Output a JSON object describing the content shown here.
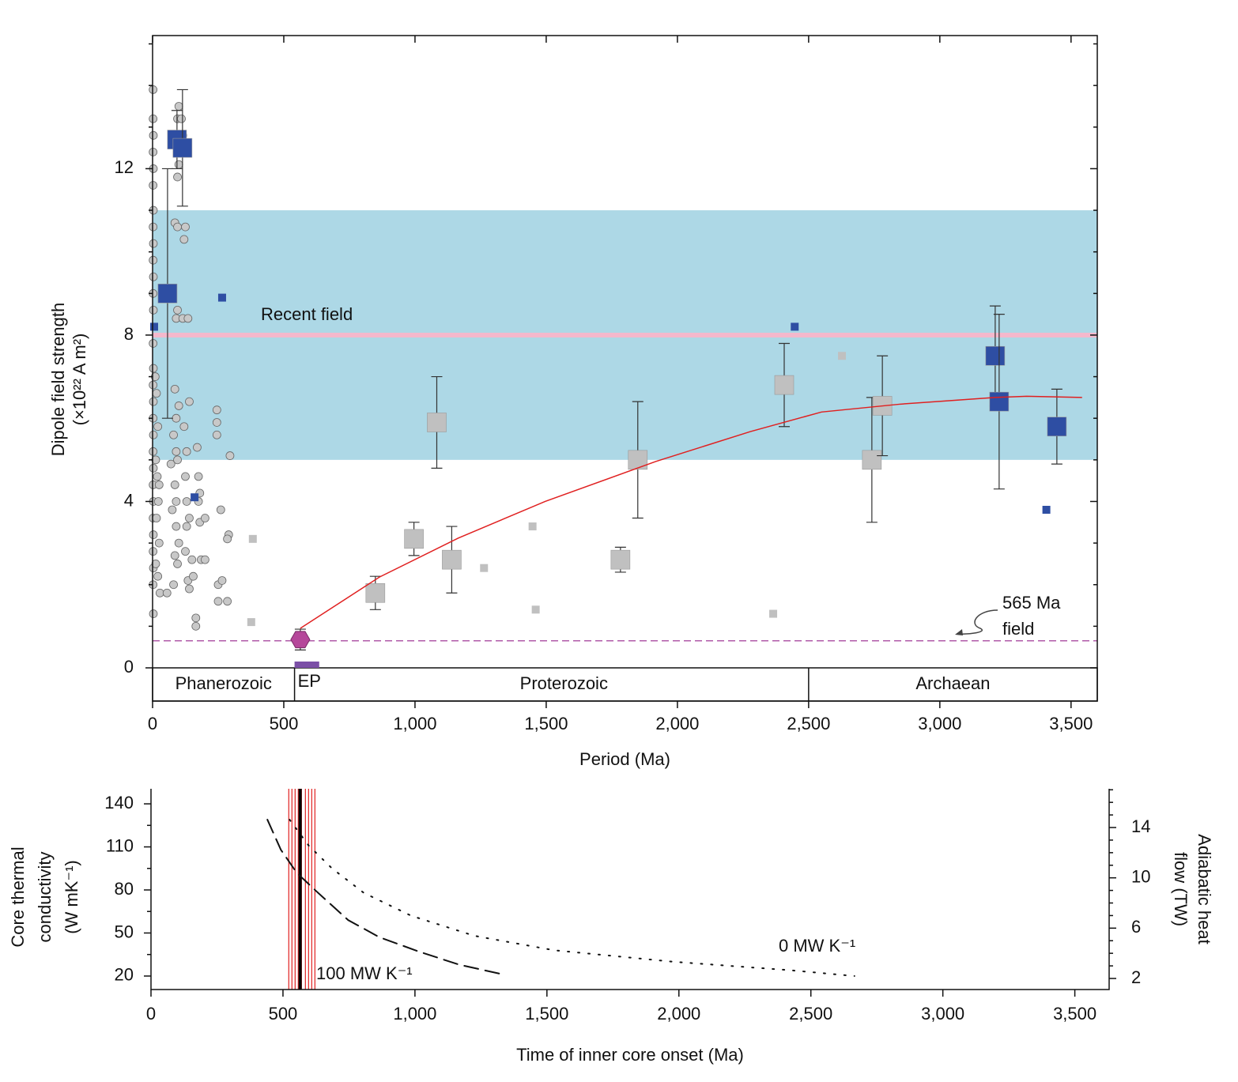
{
  "chart_data": [
    {
      "type": "scatter",
      "xlabel": "Period (Ma)",
      "ylabel": [
        "Dipole field strength",
        "(×10²² A m²)"
      ],
      "xlim": [
        0,
        3600
      ],
      "ylim": [
        0,
        15.2
      ],
      "xticks": [
        0,
        500,
        {
          "value": 1000,
          "label": "1,000"
        },
        {
          "value": 1500,
          "label": "1,500"
        },
        {
          "value": 2000,
          "label": "2,000"
        },
        {
          "value": 2500,
          "label": "2,500"
        },
        {
          "value": 3000,
          "label": "3,000"
        },
        {
          "value": 3500,
          "label": "3,500"
        }
      ],
      "yticks": [
        0,
        4,
        8,
        12
      ],
      "yminorticks": [
        1,
        2,
        3,
        5,
        6,
        7,
        9,
        10,
        11,
        13,
        14,
        15
      ],
      "reference_band": [
        5,
        11
      ],
      "band_color": "#add8e6",
      "recent_field": {
        "label": "Recent field",
        "value": 8,
        "color": "#f4b8cc"
      },
      "ediacaran_field": {
        "label": [
          "565 Ma",
          "field"
        ],
        "value": 0.65,
        "color": "#b05aa8"
      },
      "eras": [
        {
          "name": "Phanerozoic",
          "start": 0,
          "end": 541,
          "divider": true
        },
        {
          "name": "EP",
          "start": 541,
          "end": 635,
          "color": "#7b4fa6"
        },
        {
          "name": "Proterozoic",
          "start": 635,
          "end": 2500,
          "divider": true
        },
        {
          "name": "Archaean",
          "start": 2500,
          "end": 3600
        }
      ],
      "series": [
        {
          "marker": "circle",
          "color": "#c8c8c8",
          "x": [
            2,
            2,
            3,
            2,
            3,
            2,
            3,
            2,
            3,
            2,
            3,
            2,
            3,
            2,
            3,
            2,
            3,
            2,
            3,
            2,
            3,
            2,
            3,
            2,
            3,
            2,
            3,
            2,
            3,
            15,
            20,
            12,
            18,
            22,
            15,
            25,
            12,
            20,
            28,
            10,
            25,
            55,
            80,
            85,
            90,
            75,
            85,
            70,
            90,
            80,
            90,
            85,
            95,
            90,
            85,
            95,
            100,
            95,
            100,
            95,
            100,
            95,
            90,
            100,
            95,
            110,
            115,
            125,
            120,
            115,
            135,
            140,
            130,
            125,
            130,
            140,
            130,
            125,
            135,
            140,
            120,
            150,
            155,
            165,
            165,
            175,
            180,
            175,
            180,
            185,
            170,
            200,
            200,
            245,
            245,
            245,
            250,
            250,
            260,
            265,
            290,
            285,
            295,
            285
          ],
          "y": [
            13.9,
            13.2,
            12.8,
            12.4,
            12.0,
            11.6,
            11.0,
            10.6,
            10.2,
            9.8,
            9.4,
            9.0,
            8.6,
            7.8,
            7.2,
            6.8,
            6.4,
            6.0,
            5.6,
            5.2,
            4.8,
            4.4,
            4.0,
            3.6,
            3.2,
            2.8,
            2.4,
            2.0,
            1.3,
            6.6,
            5.8,
            5.0,
            4.6,
            4.0,
            3.6,
            3.0,
            2.5,
            2.2,
            1.8,
            7.0,
            4.4,
            1.8,
            2.0,
            2.7,
            3.4,
            3.8,
            4.4,
            4.9,
            5.2,
            5.6,
            6.0,
            6.7,
            8.6,
            8.4,
            10.7,
            10.6,
            13.5,
            13.2,
            12.1,
            11.8,
            6.3,
            5.0,
            4.0,
            3.0,
            2.5,
            13.2,
            12.8,
            10.6,
            10.3,
            8.4,
            8.4,
            6.4,
            5.2,
            4.6,
            4.0,
            3.6,
            3.4,
            2.8,
            2.1,
            1.9,
            5.8,
            2.6,
            2.2,
            1.2,
            1.0,
            4.0,
            4.2,
            4.6,
            3.5,
            2.6,
            5.3,
            2.6,
            3.6,
            6.2,
            5.9,
            5.6,
            2.0,
            1.6,
            3.8,
            2.1,
            3.2,
            3.1,
            5.1,
            1.6
          ]
        },
        {
          "marker": "square",
          "size": "small",
          "color": "#c0c0c0",
          "x": [
            382,
            376,
            1263,
            1448,
            1460,
            2365,
            2627
          ],
          "y": [
            3.1,
            1.1,
            2.4,
            3.4,
            1.4,
            1.3,
            7.5
          ]
        },
        {
          "marker": "square",
          "size": "large",
          "color": "#c0c0c0",
          "x": [
            849,
            996,
            1083,
            1140,
            1783,
            1849,
            2407,
            2741,
            2781
          ],
          "y": [
            1.8,
            3.1,
            5.9,
            2.6,
            2.6,
            5.0,
            6.8,
            5.0,
            6.3
          ],
          "errors": [
            0.4,
            0.4,
            1.1,
            0.8,
            0.3,
            1.4,
            1.0,
            1.5,
            1.2
          ]
        },
        {
          "marker": "square",
          "size": "small",
          "color": "#2e4ea3",
          "x": [
            265,
            160,
            2447,
            3406,
            6
          ],
          "y": [
            8.9,
            4.1,
            8.2,
            3.8,
            8.2
          ]
        },
        {
          "marker": "square",
          "size": "large",
          "color": "#2e4ea3",
          "x": [
            57,
            93,
            114,
            3211,
            3226,
            3446
          ],
          "y": [
            9.0,
            12.7,
            12.5,
            7.5,
            6.4,
            5.8
          ],
          "errors": [
            3.0,
            0.7,
            1.4,
            1.2,
            2.1,
            0.9
          ]
        },
        {
          "marker": "line",
          "color": "#e02020",
          "x": [
            563,
            864,
            1165,
            1496,
            1917,
            2278,
            2549,
            2850,
            3211,
            3331,
            3542
          ],
          "y": [
            0.95,
            2.18,
            3.12,
            4.0,
            4.96,
            5.68,
            6.15,
            6.34,
            6.5,
            6.53,
            6.5
          ]
        },
        {
          "marker": "hexagon",
          "color": "#b5479a",
          "x": [
            563
          ],
          "y": [
            0.68
          ],
          "errors": [
            0.25
          ]
        }
      ]
    },
    {
      "type": "line",
      "xlabel": "Time of inner core onset (Ma)",
      "ylabel": [
        "Core thermal",
        "conductivity",
        "(W mK⁻¹)"
      ],
      "y2label": [
        "Adiabatic heat",
        "flow (TW)"
      ],
      "xlim": [
        0,
        3630
      ],
      "ylim": [
        10.6,
        150.5
      ],
      "y2lim": [
        1.12,
        17.08
      ],
      "xticks": [
        0,
        500,
        {
          "value": 1000,
          "label": "1,000"
        },
        {
          "value": 1500,
          "label": "1,500"
        },
        {
          "value": 2000,
          "label": "2,000"
        },
        {
          "value": 2500,
          "label": "2,500"
        },
        {
          "value": 3000,
          "label": "3,000"
        },
        {
          "value": 3500,
          "label": "3,500"
        }
      ],
      "yticks": [
        20,
        50,
        80,
        110,
        140
      ],
      "yminorticks": [
        35,
        65,
        95,
        125
      ],
      "y2ticks": [
        2,
        6,
        10,
        14
      ],
      "y2minorticks": [
        3,
        4,
        5,
        7,
        8,
        9,
        11,
        12,
        13,
        15,
        16,
        17
      ],
      "series": [
        {
          "name": "100 MW K⁻¹",
          "style": "dashed",
          "color": "#111",
          "x": [
            441,
            492,
            552,
            627,
            747,
            866,
            1016,
            1166,
            1337
          ],
          "values": [
            129,
            108,
            92,
            79,
            59,
            47,
            37,
            28,
            21
          ]
        },
        {
          "name": "0 MW K⁻¹",
          "style": "dotted",
          "color": "#111",
          "x": [
            525,
            597,
            686,
            806,
            986,
            1226,
            1526,
            1976,
            2425,
            2665
          ],
          "values": [
            129,
            111,
            95,
            78,
            62,
            48,
            38,
            30,
            24,
            20
          ]
        }
      ],
      "onsets": {
        "color": "#e02020",
        "x": [
          522,
          534,
          546,
          558,
          570,
          585,
          597,
          609,
          621
        ]
      },
      "onset_mean": {
        "color": "#000",
        "x": 565
      }
    }
  ]
}
